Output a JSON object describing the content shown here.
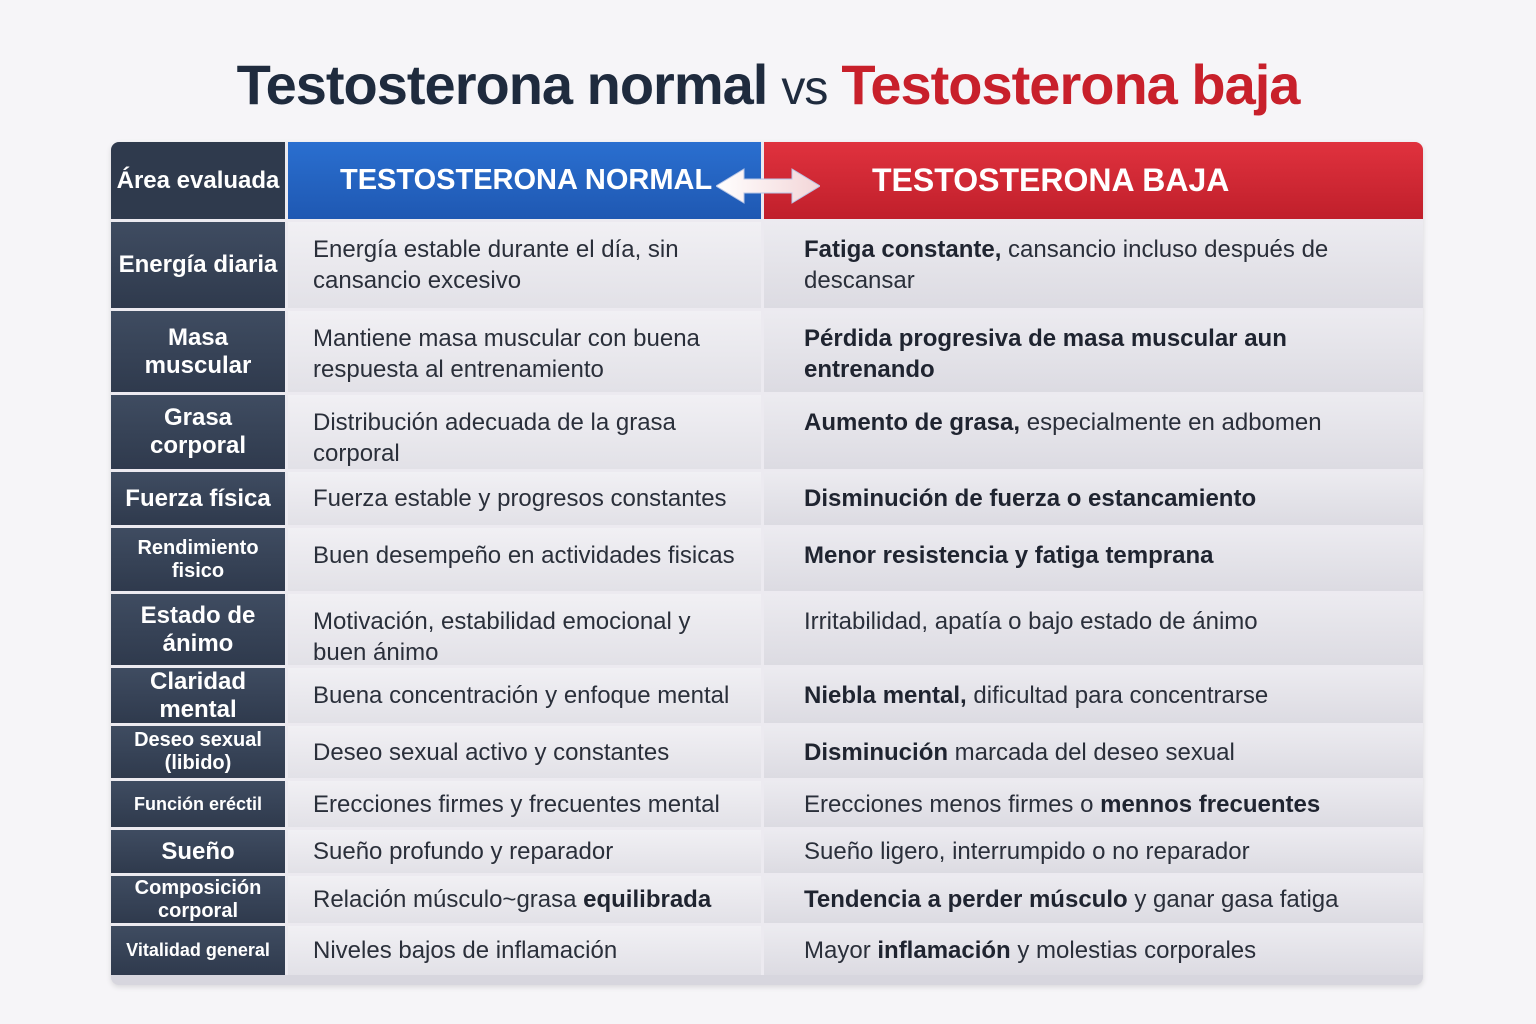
{
  "title": {
    "part1": "Testosterona normal",
    "vs": "vs",
    "part2": "Testosterona baja"
  },
  "header": {
    "area": "Área evaluada",
    "normal": "TESTOSTERONA NORMAL",
    "baja": "TESTOSTERONA BAJA"
  },
  "colors": {
    "normal_accent": "#1f58b2",
    "baja_accent": "#c01f2b",
    "area_bg": "#2f3a4d"
  },
  "rows": [
    {
      "area": "Energía diaria",
      "normal": "Energía estable durante el día, sin cansancio excesivo",
      "baja_bold": "Fatiga constante,",
      "baja_rest": " cansancio incluso después de descansar"
    },
    {
      "area": "Masa muscular",
      "normal": "Mantiene masa muscular con buena respuesta al entrenamiento",
      "baja_bold": "Pérdida progresiva de masa muscular aun entrenando",
      "baja_rest": ""
    },
    {
      "area": "Grasa corporal",
      "normal": "Distribución adecuada de la grasa corporal",
      "baja_bold": "Aumento de grasa,",
      "baja_rest": " especialmente en adbomen"
    },
    {
      "area": "Fuerza física",
      "normal": "Fuerza estable y progresos constantes",
      "baja_bold": "Disminución de fuerza o estancamiento",
      "baja_rest": ""
    },
    {
      "area": "Rendimiento fisico",
      "normal": "Buen desempeño en actividades fisicas",
      "baja_bold": "Menor resistencia y fatiga temprana",
      "baja_rest": ""
    },
    {
      "area": "Estado de ánimo",
      "normal": "Motivación, estabilidad emocional y buen ánimo",
      "baja_bold": "",
      "baja_rest": "Irritabilidad, apatía o bajo estado de ánimo"
    },
    {
      "area": "Claridad mental",
      "normal": "Buena concentración y enfoque mental",
      "baja_bold": "Niebla mental,",
      "baja_rest": " dificultad para concentrarse"
    },
    {
      "area": "Deseo sexual (libido)",
      "normal": "Deseo sexual activo y constantes",
      "baja_bold": "Disminución",
      "baja_rest": " marcada del deseo sexual"
    },
    {
      "area": "Función eréctil",
      "normal": "Erecciones firmes y frecuentes mental",
      "baja_pre": "Erecciones menos firmes o ",
      "baja_bold": "mennos frecuentes",
      "baja_rest": ""
    },
    {
      "area": "Sueño",
      "normal": "Sueño profundo y reparador",
      "baja_bold": "",
      "baja_rest": "Sueño ligero, interrumpido o no reparador"
    },
    {
      "area": "Composición corporal",
      "normal_pre": "Relación músculo~grasa ",
      "normal_bold": "equilibrada",
      "baja_bold": "Tendencia a perder músculo",
      "baja_rest": " y ganar gasa fatiga"
    },
    {
      "area": "Vitalidad general",
      "normal": "Niveles bajos de inflamación",
      "baja_pre": "Mayor ",
      "baja_bold": "inflamación",
      "baja_rest": " y molestias corporales"
    }
  ]
}
